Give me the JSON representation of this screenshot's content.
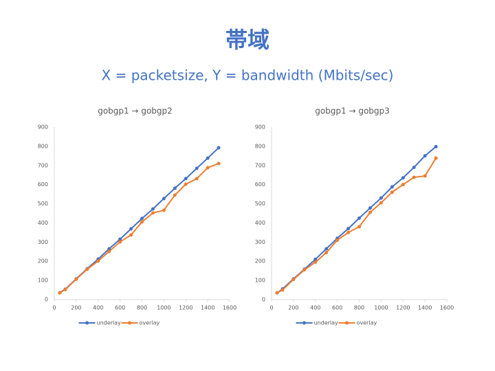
{
  "title": "帯域",
  "subtitle": "X = packetsize, Y = bandwidth (Mbits/sec)",
  "chart_data": [
    {
      "type": "line",
      "title": "gobgp1 → gobgp2",
      "x": [
        50,
        100,
        200,
        300,
        400,
        500,
        600,
        700,
        800,
        900,
        1000,
        1100,
        1200,
        1300,
        1400,
        1500
      ],
      "series": [
        {
          "name": "underlay",
          "color": "#4472c4",
          "values": [
            36,
            54,
            108,
            161,
            211,
            265,
            315,
            369,
            423,
            473,
            527,
            581,
            631,
            685,
            738,
            792
          ]
        },
        {
          "name": "overlay",
          "color": "#ed7d31",
          "values": [
            35,
            52,
            106,
            158,
            201,
            251,
            301,
            337,
            405,
            452,
            466,
            545,
            602,
            631,
            688,
            710
          ]
        }
      ],
      "xlim": [
        0,
        1600
      ],
      "xticks": [
        0,
        200,
        400,
        600,
        800,
        1000,
        1200,
        1400,
        1600
      ],
      "ylim": [
        0,
        900
      ],
      "yticks": [
        0,
        100,
        200,
        300,
        400,
        500,
        600,
        700,
        800,
        900
      ],
      "grid": false,
      "legend": "bottom"
    },
    {
      "type": "line",
      "title": "gobgp1 → gobgp3",
      "x": [
        50,
        100,
        200,
        300,
        400,
        500,
        600,
        700,
        800,
        900,
        1000,
        1100,
        1200,
        1300,
        1400,
        1500
      ],
      "series": [
        {
          "name": "underlay",
          "color": "#4472c4",
          "values": [
            35,
            55,
            108,
            158,
            210,
            265,
            320,
            370,
            425,
            478,
            530,
            588,
            635,
            690,
            750,
            798
          ]
        },
        {
          "name": "overlay",
          "color": "#ed7d31",
          "values": [
            35,
            50,
            105,
            155,
            195,
            245,
            310,
            350,
            380,
            455,
            505,
            560,
            600,
            638,
            645,
            738
          ]
        }
      ],
      "xlim": [
        0,
        1600
      ],
      "xticks": [
        0,
        200,
        400,
        600,
        800,
        1000,
        1200,
        1400,
        1600
      ],
      "ylim": [
        0,
        900
      ],
      "yticks": [
        0,
        100,
        200,
        300,
        400,
        500,
        600,
        700,
        800,
        900
      ],
      "grid": false,
      "legend": "bottom"
    }
  ]
}
